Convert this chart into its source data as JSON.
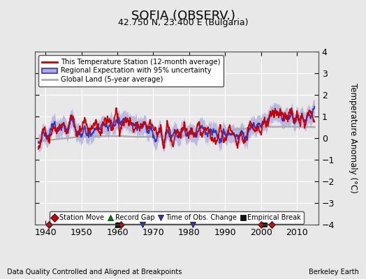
{
  "title": "SOFIA (OBSERV.)",
  "subtitle": "42.750 N, 23.400 E (Bulgaria)",
  "xlabel_bottom": "Data Quality Controlled and Aligned at Breakpoints",
  "xlabel_right": "Berkeley Earth",
  "ylabel": "Temperature Anomaly (°C)",
  "xlim": [
    1937,
    2016
  ],
  "ylim": [
    -4,
    4
  ],
  "yticks": [
    -4,
    -3,
    -2,
    -1,
    0,
    1,
    2,
    3,
    4
  ],
  "xticks": [
    1940,
    1950,
    1960,
    1970,
    1980,
    1990,
    2000,
    2010
  ],
  "station_color": "#cc0000",
  "regional_color": "#3333bb",
  "regional_fill": "#aaaadd",
  "global_color": "#aaaaaa",
  "bg_color": "#e8e8e8",
  "legend_items": [
    "This Temperature Station (12-month average)",
    "Regional Expectation with 95% uncertainty",
    "Global Land (5-year average)"
  ],
  "markers": {
    "station_move": {
      "years": [
        1941,
        1961,
        2000,
        2003
      ],
      "color": "#cc0000"
    },
    "record_gap": {
      "years": [
        1960
      ],
      "color": "#008800"
    },
    "obs_change": {
      "years": [
        1967,
        1981
      ],
      "color": "#3333bb"
    },
    "empirical_break": {
      "years": [
        1960,
        2001
      ],
      "color": "#111111"
    }
  }
}
